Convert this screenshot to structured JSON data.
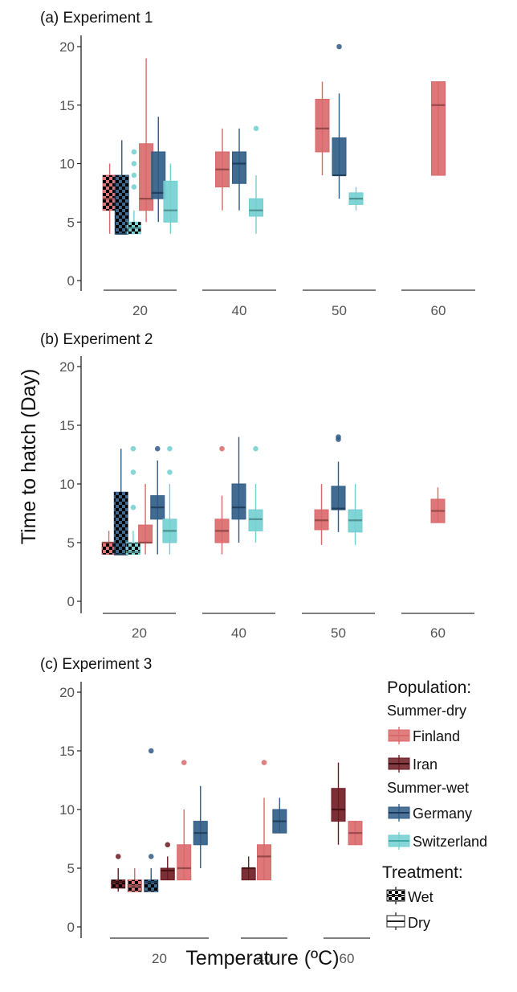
{
  "figure": {
    "ylabel": "Time to hatch (Day)",
    "xlabel": "Temperature (ºC)"
  },
  "colors": {
    "Finland": "#d9686a",
    "Iran": "#6b1a20",
    "Germany": "#2e5b86",
    "Switzerland": "#72cfd0"
  },
  "legend": {
    "population_title": "Population:",
    "groups": [
      {
        "label": "Summer-dry",
        "items": [
          {
            "label": "Finland",
            "color": "#d9686a"
          },
          {
            "label": "Iran",
            "color": "#6b1a20"
          }
        ]
      },
      {
        "label": "Summer-wet",
        "items": [
          {
            "label": "Germany",
            "color": "#2e5b86"
          },
          {
            "label": "Switzerland",
            "color": "#72cfd0"
          }
        ]
      }
    ],
    "treatment_title": "Treatment:",
    "treatments": [
      {
        "label": "Wet",
        "pattern": "checkered"
      },
      {
        "label": "Dry",
        "pattern": "solid"
      }
    ]
  },
  "chart_data": [
    {
      "type": "box",
      "title": "(a) Experiment 1",
      "ylim": [
        0,
        20
      ],
      "yticks": [
        0,
        5,
        10,
        15,
        20
      ],
      "categories": [
        "20",
        "40",
        "50",
        "60"
      ],
      "boxes": [
        {
          "temp": "20",
          "population": "Finland",
          "treatment": "Wet",
          "min": 4,
          "q1": 6,
          "median": 7,
          "q3": 9,
          "max": 10,
          "outliers": []
        },
        {
          "temp": "20",
          "population": "Germany",
          "treatment": "Wet",
          "min": 4,
          "q1": 4,
          "median": 4,
          "q3": 9,
          "max": 12,
          "outliers": []
        },
        {
          "temp": "20",
          "population": "Switzerland",
          "treatment": "Wet",
          "min": 4,
          "q1": 4,
          "median": 4.5,
          "q3": 5,
          "max": 6,
          "outliers": [
            8,
            9,
            10,
            11
          ]
        },
        {
          "temp": "20",
          "population": "Finland",
          "treatment": "Dry",
          "min": 5,
          "q1": 6,
          "median": 7,
          "q3": 11.7,
          "max": 19,
          "outliers": []
        },
        {
          "temp": "20",
          "population": "Germany",
          "treatment": "Dry",
          "min": 5,
          "q1": 7,
          "median": 7.5,
          "q3": 11,
          "max": 14,
          "outliers": []
        },
        {
          "temp": "20",
          "population": "Switzerland",
          "treatment": "Dry",
          "min": 4,
          "q1": 5,
          "median": 6,
          "q3": 8.5,
          "max": 10,
          "outliers": []
        },
        {
          "temp": "40",
          "population": "Finland",
          "treatment": "Dry",
          "min": 6,
          "q1": 8,
          "median": 9.5,
          "q3": 11,
          "max": 13,
          "outliers": []
        },
        {
          "temp": "40",
          "population": "Germany",
          "treatment": "Dry",
          "min": 6,
          "q1": 8.3,
          "median": 10,
          "q3": 11,
          "max": 13,
          "outliers": []
        },
        {
          "temp": "40",
          "population": "Switzerland",
          "treatment": "Dry",
          "min": 4,
          "q1": 5.5,
          "median": 6,
          "q3": 7,
          "max": 9,
          "outliers": [
            13
          ]
        },
        {
          "temp": "50",
          "population": "Finland",
          "treatment": "Dry",
          "min": 9,
          "q1": 11,
          "median": 13,
          "q3": 15.5,
          "max": 17,
          "outliers": []
        },
        {
          "temp": "50",
          "population": "Germany",
          "treatment": "Dry",
          "min": 7,
          "q1": 9,
          "median": 9,
          "q3": 12.2,
          "max": 16,
          "outliers": [
            20
          ]
        },
        {
          "temp": "50",
          "population": "Switzerland",
          "treatment": "Dry",
          "min": 6,
          "q1": 6.5,
          "median": 7,
          "q3": 7.5,
          "max": 8,
          "outliers": []
        },
        {
          "temp": "60",
          "population": "Finland",
          "treatment": "Dry",
          "min": 9,
          "q1": 9,
          "median": 15,
          "q3": 17,
          "max": 17,
          "outliers": []
        }
      ]
    },
    {
      "type": "box",
      "title": "(b) Experiment 2",
      "ylim": [
        0,
        20
      ],
      "yticks": [
        0,
        5,
        10,
        15,
        20
      ],
      "categories": [
        "20",
        "40",
        "50",
        "60"
      ],
      "boxes": [
        {
          "temp": "20",
          "population": "Finland",
          "treatment": "Wet",
          "min": 4,
          "q1": 4,
          "median": 5,
          "q3": 5,
          "max": 6,
          "outliers": []
        },
        {
          "temp": "20",
          "population": "Germany",
          "treatment": "Wet",
          "min": 4,
          "q1": 4,
          "median": 4,
          "q3": 9.3,
          "max": 13,
          "outliers": []
        },
        {
          "temp": "20",
          "population": "Switzerland",
          "treatment": "Wet",
          "min": 4,
          "q1": 4,
          "median": 4.2,
          "q3": 5,
          "max": 6,
          "outliers": [
            8,
            11,
            13
          ]
        },
        {
          "temp": "20",
          "population": "Finland",
          "treatment": "Dry",
          "min": 4,
          "q1": 5,
          "median": 5,
          "q3": 6.5,
          "max": 10,
          "outliers": []
        },
        {
          "temp": "20",
          "population": "Germany",
          "treatment": "Dry",
          "min": 4,
          "q1": 7,
          "median": 8,
          "q3": 9,
          "max": 12,
          "outliers": [
            13
          ]
        },
        {
          "temp": "20",
          "population": "Switzerland",
          "treatment": "Dry",
          "min": 4,
          "q1": 5,
          "median": 6,
          "q3": 7,
          "max": 10,
          "outliers": [
            11,
            13
          ]
        },
        {
          "temp": "40",
          "population": "Finland",
          "treatment": "Dry",
          "min": 4,
          "q1": 5,
          "median": 6,
          "q3": 7,
          "max": 9,
          "outliers": [
            13
          ]
        },
        {
          "temp": "40",
          "population": "Germany",
          "treatment": "Dry",
          "min": 5,
          "q1": 7,
          "median": 8,
          "q3": 10,
          "max": 14,
          "outliers": []
        },
        {
          "temp": "40",
          "population": "Switzerland",
          "treatment": "Dry",
          "min": 5,
          "q1": 6,
          "median": 7,
          "q3": 7.8,
          "max": 10,
          "outliers": [
            13
          ]
        },
        {
          "temp": "50",
          "population": "Finland",
          "treatment": "Dry",
          "min": 4.8,
          "q1": 6.1,
          "median": 6.9,
          "q3": 7.8,
          "max": 10,
          "outliers": []
        },
        {
          "temp": "50",
          "population": "Germany",
          "treatment": "Dry",
          "min": 5.9,
          "q1": 7.8,
          "median": 7.9,
          "q3": 9.8,
          "max": 11.9,
          "outliers": [
            13.8,
            14
          ]
        },
        {
          "temp": "50",
          "population": "Switzerland",
          "treatment": "Dry",
          "min": 4.8,
          "q1": 5.9,
          "median": 6.9,
          "q3": 7.8,
          "max": 10,
          "outliers": []
        },
        {
          "temp": "60",
          "population": "Finland",
          "treatment": "Dry",
          "min": 6.7,
          "q1": 6.7,
          "median": 7.7,
          "q3": 8.7,
          "max": 9.7,
          "outliers": []
        }
      ]
    },
    {
      "type": "box",
      "title": "(c) Experiment 3",
      "ylim": [
        0,
        20
      ],
      "yticks": [
        0,
        5,
        10,
        15,
        20
      ],
      "categories": [
        "20",
        "40",
        "60"
      ],
      "boxes": [
        {
          "temp": "20",
          "population": "Iran",
          "treatment": "Wet",
          "min": 3,
          "q1": 3.3,
          "median": 3.8,
          "q3": 4,
          "max": 5,
          "outliers": [
            6
          ]
        },
        {
          "temp": "20",
          "population": "Finland",
          "treatment": "Wet",
          "min": 3,
          "q1": 3,
          "median": 3.5,
          "q3": 4,
          "max": 5,
          "outliers": []
        },
        {
          "temp": "20",
          "population": "Germany",
          "treatment": "Wet",
          "min": 3,
          "q1": 3,
          "median": 3.8,
          "q3": 4,
          "max": 5,
          "outliers": [
            6,
            15
          ]
        },
        {
          "temp": "20",
          "population": "Iran",
          "treatment": "Dry",
          "min": 4,
          "q1": 4,
          "median": 4.8,
          "q3": 5,
          "max": 6,
          "outliers": [
            7
          ]
        },
        {
          "temp": "20",
          "population": "Finland",
          "treatment": "Dry",
          "min": 4,
          "q1": 4,
          "median": 5,
          "q3": 7,
          "max": 10,
          "outliers": [
            14
          ]
        },
        {
          "temp": "20",
          "population": "Germany",
          "treatment": "Dry",
          "min": 5,
          "q1": 7,
          "median": 8,
          "q3": 9,
          "max": 12,
          "outliers": []
        },
        {
          "temp": "40",
          "population": "Iran",
          "treatment": "Dry",
          "min": 4,
          "q1": 4,
          "median": 5,
          "q3": 5,
          "max": 6,
          "outliers": []
        },
        {
          "temp": "40",
          "population": "Finland",
          "treatment": "Dry",
          "min": 4,
          "q1": 4,
          "median": 6,
          "q3": 7,
          "max": 11,
          "outliers": [
            14
          ]
        },
        {
          "temp": "40",
          "population": "Germany",
          "treatment": "Dry",
          "min": 8,
          "q1": 8,
          "median": 9,
          "q3": 10,
          "max": 11,
          "outliers": []
        },
        {
          "temp": "60",
          "population": "Iran",
          "treatment": "Dry",
          "min": 7,
          "q1": 9,
          "median": 10,
          "q3": 11.8,
          "max": 14,
          "outliers": []
        },
        {
          "temp": "60",
          "population": "Finland",
          "treatment": "Dry",
          "min": 7,
          "q1": 7,
          "median": 8,
          "q3": 9,
          "max": 9,
          "outliers": []
        }
      ]
    }
  ]
}
